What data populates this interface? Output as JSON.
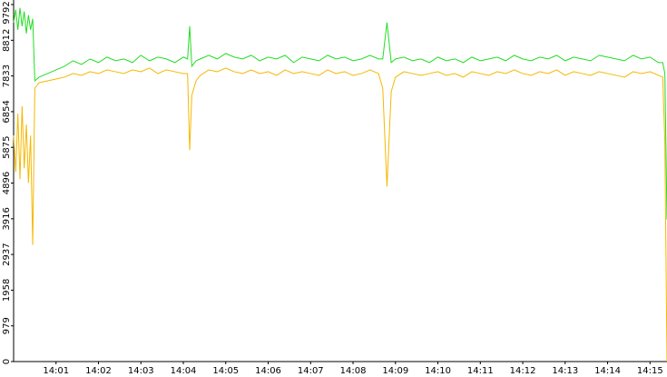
{
  "chart_data": {
    "type": "line",
    "x": [
      840,
      840.05,
      840.1,
      840.15,
      840.2,
      840.25,
      840.3,
      840.35,
      840.4,
      840.45,
      840.5,
      840.6,
      840.8,
      841.0,
      841.2,
      841.4,
      841.6,
      841.8,
      842.0,
      842.2,
      842.4,
      842.6,
      842.8,
      843.0,
      843.2,
      843.4,
      843.6,
      843.8,
      844.0,
      844.1,
      844.15,
      844.2,
      844.3,
      844.4,
      844.6,
      844.8,
      845.0,
      845.2,
      845.4,
      845.6,
      845.8,
      846.0,
      846.2,
      846.4,
      846.6,
      846.8,
      847.0,
      847.2,
      847.4,
      847.6,
      847.8,
      848.0,
      848.2,
      848.4,
      848.6,
      848.7,
      848.8,
      848.9,
      849.0,
      849.2,
      849.4,
      849.6,
      849.8,
      850.0,
      850.2,
      850.4,
      850.6,
      850.8,
      851.0,
      851.2,
      851.4,
      851.6,
      851.8,
      852.0,
      852.2,
      852.4,
      852.6,
      852.8,
      853.0,
      853.2,
      853.4,
      853.6,
      853.8,
      854.0,
      854.2,
      854.4,
      854.6,
      854.8,
      855.0,
      855.2,
      855.3,
      855.35,
      855.4
    ],
    "series": [
      {
        "color": "#22dd22",
        "values": [
          9300,
          9650,
          9100,
          9700,
          9200,
          9600,
          9000,
          9500,
          9100,
          9400,
          7700,
          7800,
          7900,
          8000,
          8100,
          8250,
          8150,
          8300,
          8200,
          8350,
          8250,
          8300,
          8200,
          8400,
          8250,
          8350,
          8300,
          8200,
          8350,
          8300,
          9200,
          8100,
          8250,
          8300,
          8400,
          8300,
          8450,
          8350,
          8300,
          8400,
          8250,
          8350,
          8300,
          8400,
          8200,
          8350,
          8300,
          8250,
          8400,
          8300,
          8350,
          8250,
          8300,
          8400,
          8300,
          8300,
          9300,
          8200,
          8300,
          8350,
          8250,
          8300,
          8200,
          8350,
          8250,
          8300,
          8200,
          8350,
          8250,
          8300,
          8350,
          8250,
          8400,
          8300,
          8250,
          8350,
          8300,
          8400,
          8250,
          8350,
          8300,
          8250,
          8400,
          8350,
          8300,
          8250,
          8400,
          8300,
          8350,
          8200,
          8200,
          7900,
          3900
        ]
      },
      {
        "color": "#f5b800",
        "values": [
          6200,
          5200,
          6800,
          5000,
          7000,
          5300,
          6500,
          4900,
          6200,
          3200,
          7500,
          7650,
          7700,
          7750,
          7800,
          7900,
          7850,
          7950,
          7900,
          8000,
          7950,
          7900,
          8000,
          7950,
          8050,
          7900,
          8000,
          7950,
          7900,
          7900,
          5800,
          7300,
          7700,
          7850,
          8000,
          7950,
          8050,
          7950,
          7900,
          8000,
          7900,
          7950,
          7850,
          8000,
          7900,
          7950,
          7900,
          7850,
          8000,
          7900,
          7950,
          7850,
          7900,
          8000,
          7900,
          7500,
          4800,
          7400,
          7800,
          7950,
          7900,
          7850,
          7900,
          7950,
          7850,
          7900,
          7800,
          7950,
          7900,
          7850,
          7950,
          7900,
          8000,
          7900,
          7850,
          7950,
          7900,
          8000,
          7850,
          7950,
          7900,
          7850,
          7950,
          7900,
          7850,
          7800,
          7950,
          7900,
          7950,
          7850,
          7800,
          6000,
          0
        ]
      }
    ],
    "xlim": [
      840,
      855.4
    ],
    "xticks": [
      {
        "value": 841,
        "label": "14:01"
      },
      {
        "value": 842,
        "label": "14:02"
      },
      {
        "value": 843,
        "label": "14:03"
      },
      {
        "value": 844,
        "label": "14:04"
      },
      {
        "value": 845,
        "label": "14:05"
      },
      {
        "value": 846,
        "label": "14:06"
      },
      {
        "value": 847,
        "label": "14:07"
      },
      {
        "value": 848,
        "label": "14:08"
      },
      {
        "value": 849,
        "label": "14:09"
      },
      {
        "value": 850,
        "label": "14:10"
      },
      {
        "value": 851,
        "label": "14:11"
      },
      {
        "value": 852,
        "label": "14:12"
      },
      {
        "value": 853,
        "label": "14:13"
      },
      {
        "value": 854,
        "label": "14:14"
      },
      {
        "value": 855,
        "label": "14:15"
      }
    ],
    "ylim": [
      0,
      9792
    ],
    "yticks": [
      0,
      979,
      1958,
      2937,
      3916,
      4896,
      5875,
      6854,
      7833,
      8812,
      9792
    ]
  }
}
